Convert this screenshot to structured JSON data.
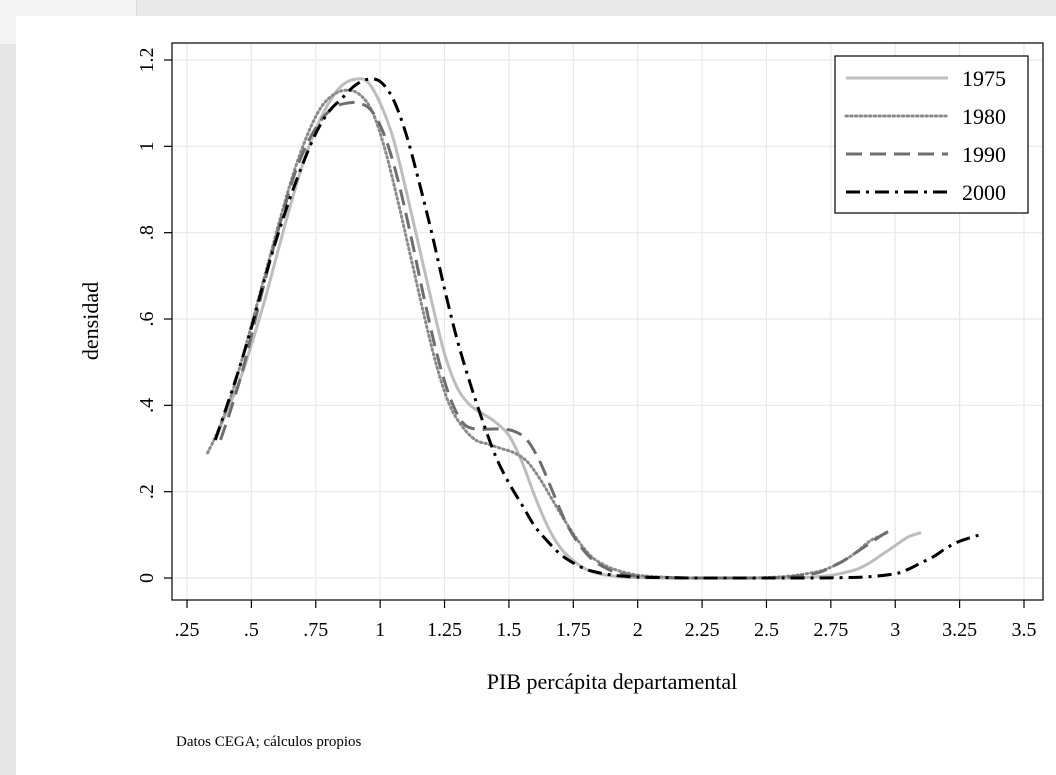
{
  "chart_data": {
    "type": "line",
    "xlabel": "PIB percápita departamental",
    "ylabel": "densidad",
    "note": "Datos CEGA; cálculos propios",
    "xlim": [
      0.25,
      3.5
    ],
    "ylim": [
      0,
      1.2
    ],
    "x_ticks": [
      0.25,
      0.5,
      0.75,
      1,
      1.25,
      1.5,
      1.75,
      2,
      2.25,
      2.5,
      2.75,
      3,
      3.25,
      3.5
    ],
    "x_tick_labels": [
      ".25",
      ".5",
      ".75",
      "1",
      "1.25",
      "1.5",
      "1.75",
      "2",
      "2.25",
      "2.5",
      "2.75",
      "3",
      "3.25",
      "3.5"
    ],
    "y_ticks": [
      0,
      0.2,
      0.4,
      0.6,
      0.8,
      1,
      1.2
    ],
    "y_tick_labels": [
      "0",
      ".2",
      ".4",
      ".6",
      ".8",
      "1",
      "1.2"
    ],
    "grid": true,
    "legend_position": "top-right",
    "series": [
      {
        "name": "1975",
        "color": "#bdbdbd",
        "dash": "solid",
        "x": [
          0.36,
          0.4,
          0.45,
          0.5,
          0.55,
          0.6,
          0.65,
          0.7,
          0.75,
          0.8,
          0.85,
          0.9,
          0.95,
          1.0,
          1.05,
          1.1,
          1.15,
          1.2,
          1.25,
          1.3,
          1.35,
          1.4,
          1.45,
          1.5,
          1.55,
          1.6,
          1.65,
          1.7,
          1.75,
          1.8,
          1.85,
          1.9,
          1.95,
          2.0,
          2.1,
          2.2,
          2.3,
          2.4,
          2.5,
          2.6,
          2.7,
          2.75,
          2.8,
          2.85,
          2.9,
          2.95,
          3.0,
          3.05,
          3.1
        ],
        "y": [
          0.32,
          0.38,
          0.45,
          0.54,
          0.64,
          0.75,
          0.86,
          0.96,
          1.04,
          1.1,
          1.14,
          1.155,
          1.15,
          1.1,
          1.02,
          0.9,
          0.77,
          0.64,
          0.52,
          0.44,
          0.4,
          0.38,
          0.36,
          0.33,
          0.27,
          0.19,
          0.12,
          0.07,
          0.04,
          0.02,
          0.01,
          0.005,
          0.002,
          0.001,
          0.0,
          0.0,
          0.0,
          0.0,
          0.0,
          0.0,
          0.003,
          0.006,
          0.012,
          0.02,
          0.035,
          0.055,
          0.075,
          0.095,
          0.105
        ]
      },
      {
        "name": "1980",
        "color": "#8a8a8a",
        "dash": "dotted",
        "x": [
          0.33,
          0.37,
          0.42,
          0.47,
          0.52,
          0.57,
          0.62,
          0.67,
          0.72,
          0.77,
          0.82,
          0.87,
          0.92,
          0.97,
          1.02,
          1.07,
          1.12,
          1.17,
          1.22,
          1.27,
          1.32,
          1.37,
          1.42,
          1.47,
          1.52,
          1.57,
          1.62,
          1.67,
          1.72,
          1.77,
          1.82,
          1.87,
          1.92,
          1.97,
          2.02,
          2.1,
          2.2,
          2.3,
          2.4,
          2.5,
          2.6,
          2.7,
          2.75,
          2.8,
          2.85,
          2.9,
          2.95,
          2.97
        ],
        "y": [
          0.29,
          0.34,
          0.42,
          0.52,
          0.63,
          0.74,
          0.85,
          0.95,
          1.03,
          1.09,
          1.12,
          1.13,
          1.12,
          1.08,
          0.99,
          0.87,
          0.74,
          0.61,
          0.49,
          0.4,
          0.35,
          0.32,
          0.31,
          0.3,
          0.29,
          0.27,
          0.23,
          0.18,
          0.13,
          0.085,
          0.05,
          0.03,
          0.018,
          0.01,
          0.005,
          0.002,
          0.0,
          0.0,
          0.0,
          0.001,
          0.005,
          0.015,
          0.025,
          0.04,
          0.06,
          0.085,
          0.1,
          0.105
        ]
      },
      {
        "name": "1990",
        "color": "#6e6e6e",
        "dash": "dashed",
        "x": [
          0.38,
          0.42,
          0.47,
          0.52,
          0.57,
          0.62,
          0.67,
          0.72,
          0.77,
          0.82,
          0.87,
          0.92,
          0.97,
          1.02,
          1.07,
          1.12,
          1.17,
          1.22,
          1.27,
          1.32,
          1.37,
          1.42,
          1.47,
          1.52,
          1.57,
          1.62,
          1.67,
          1.72,
          1.77,
          1.82,
          1.87,
          1.92,
          1.97,
          2.02,
          2.1,
          2.2,
          2.3,
          2.4,
          2.5,
          2.6,
          2.7,
          2.75,
          2.8,
          2.85,
          2.9,
          2.95,
          2.98
        ],
        "y": [
          0.32,
          0.39,
          0.49,
          0.61,
          0.73,
          0.84,
          0.94,
          1.01,
          1.06,
          1.09,
          1.1,
          1.1,
          1.08,
          1.02,
          0.92,
          0.79,
          0.65,
          0.52,
          0.42,
          0.36,
          0.345,
          0.345,
          0.345,
          0.34,
          0.32,
          0.27,
          0.2,
          0.13,
          0.08,
          0.045,
          0.025,
          0.012,
          0.006,
          0.003,
          0.001,
          0.0,
          0.0,
          0.0,
          0.0,
          0.003,
          0.012,
          0.025,
          0.04,
          0.06,
          0.08,
          0.1,
          0.11
        ]
      },
      {
        "name": "2000",
        "color": "#000000",
        "dash": "dashdot",
        "x": [
          0.36,
          0.4,
          0.45,
          0.5,
          0.55,
          0.6,
          0.65,
          0.7,
          0.75,
          0.8,
          0.85,
          0.9,
          0.95,
          1.0,
          1.05,
          1.1,
          1.15,
          1.2,
          1.25,
          1.3,
          1.35,
          1.4,
          1.45,
          1.5,
          1.55,
          1.6,
          1.65,
          1.7,
          1.75,
          1.8,
          1.85,
          1.9,
          1.95,
          2.0,
          2.1,
          2.2,
          2.3,
          2.4,
          2.5,
          2.6,
          2.7,
          2.8,
          2.9,
          3.0,
          3.05,
          3.1,
          3.15,
          3.2,
          3.25,
          3.3,
          3.33
        ],
        "y": [
          0.32,
          0.39,
          0.48,
          0.58,
          0.69,
          0.79,
          0.88,
          0.96,
          1.03,
          1.08,
          1.11,
          1.14,
          1.155,
          1.15,
          1.11,
          1.03,
          0.92,
          0.8,
          0.67,
          0.55,
          0.45,
          0.36,
          0.28,
          0.22,
          0.17,
          0.12,
          0.085,
          0.055,
          0.035,
          0.02,
          0.012,
          0.007,
          0.004,
          0.002,
          0.001,
          0.0,
          0.0,
          0.0,
          0.0,
          0.0,
          0.0,
          0.001,
          0.003,
          0.01,
          0.02,
          0.035,
          0.05,
          0.07,
          0.085,
          0.095,
          0.1
        ]
      }
    ]
  }
}
